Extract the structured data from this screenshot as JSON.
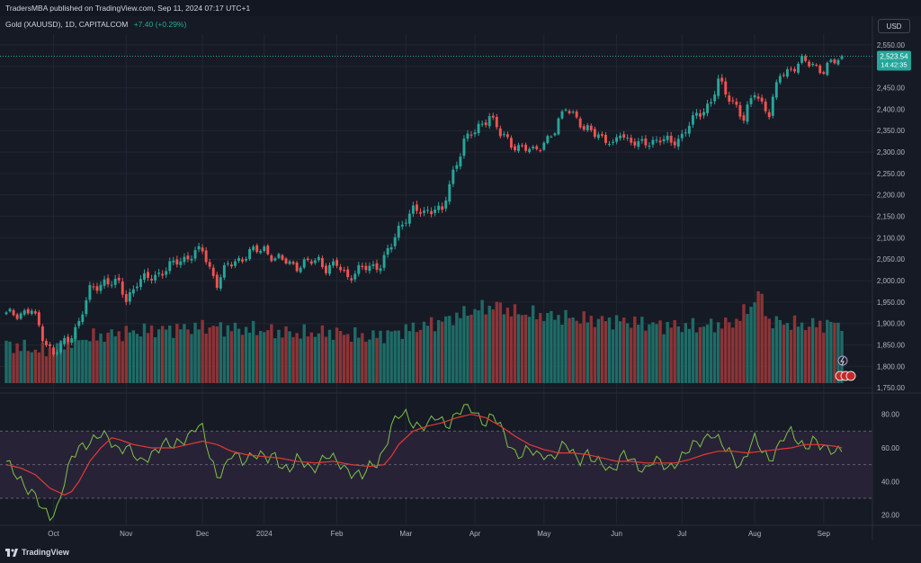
{
  "header": {
    "publisher": "TradersMBA published on TradingView.com, Sep 11, 2024 07:17 UTC+1"
  },
  "symbol": {
    "name": "Gold (XAUUSD), 1D, CAPITALCOM",
    "change": "+7.40 (+0.29%)"
  },
  "currency_label": "USD",
  "last_price": {
    "value": "2,523.54",
    "countdown": "14:42:35"
  },
  "branding": "TradingView",
  "colors": {
    "background": "#161a25",
    "up": "#26a69a",
    "down": "#ef5350",
    "rsi_line": "#7cc24a",
    "rsi_ma": "#e53935",
    "rsi_band": "#2a2438",
    "grid": "#232632"
  },
  "chart_data": [
    {
      "type": "candlestick",
      "title": "Gold (XAUUSD), 1D, CAPITALCOM",
      "ylabel": "USD",
      "ylim": [
        1740,
        2575
      ],
      "y_ticks": [
        "2,550.00",
        "2,500.00",
        "2,450.00",
        "2,400.00",
        "2,350.00",
        "2,300.00",
        "2,250.00",
        "2,200.00",
        "2,150.00",
        "2,100.00",
        "2,050.00",
        "2,000.00",
        "1,950.00",
        "1,900.00",
        "1,850.00",
        "1,800.00",
        "1,750.00"
      ],
      "y_tick_values": [
        2550,
        2500,
        2450,
        2400,
        2350,
        2300,
        2250,
        2200,
        2150,
        2100,
        2050,
        2000,
        1950,
        1900,
        1850,
        1800,
        1750
      ],
      "x_ticks": [
        "Oct",
        "Nov",
        "Dec",
        "2024",
        "Feb",
        "Mar",
        "Apr",
        "May",
        "Jun",
        "Jul",
        "Aug",
        "Sep"
      ],
      "x_tick_index": [
        13,
        33,
        54,
        71,
        91,
        110,
        129,
        148,
        168,
        186,
        206,
        225
      ],
      "anchors": [
        [
          0,
          1920
        ],
        [
          4,
          1925
        ],
        [
          7,
          1930
        ],
        [
          10,
          1870
        ],
        [
          13,
          1830
        ],
        [
          15,
          1845
        ],
        [
          17,
          1862
        ],
        [
          20,
          1905
        ],
        [
          23,
          1975
        ],
        [
          27,
          2000
        ],
        [
          31,
          1990
        ],
        [
          33,
          1958
        ],
        [
          36,
          1995
        ],
        [
          40,
          2010
        ],
        [
          44,
          2025
        ],
        [
          47,
          2045
        ],
        [
          51,
          2060
        ],
        [
          54,
          2070
        ],
        [
          56,
          2030
        ],
        [
          58,
          1995
        ],
        [
          61,
          2035
        ],
        [
          64,
          2050
        ],
        [
          68,
          2068
        ],
        [
          71,
          2075
        ],
        [
          74,
          2050
        ],
        [
          77,
          2045
        ],
        [
          80,
          2035
        ],
        [
          83,
          2040
        ],
        [
          86,
          2050
        ],
        [
          88,
          2030
        ],
        [
          91,
          2035
        ],
        [
          94,
          2010
        ],
        [
          97,
          2025
        ],
        [
          100,
          2030
        ],
        [
          103,
          2040
        ],
        [
          106,
          2080
        ],
        [
          108,
          2120
        ],
        [
          110,
          2150
        ],
        [
          112,
          2165
        ],
        [
          115,
          2155
        ],
        [
          118,
          2175
        ],
        [
          120,
          2160
        ],
        [
          123,
          2250
        ],
        [
          126,
          2330
        ],
        [
          129,
          2345
        ],
        [
          131,
          2365
        ],
        [
          133,
          2390
        ],
        [
          136,
          2340
        ],
        [
          139,
          2320
        ],
        [
          142,
          2310
        ],
        [
          145,
          2300
        ],
        [
          148,
          2325
        ],
        [
          151,
          2345
        ],
        [
          154,
          2410
        ],
        [
          157,
          2380
        ],
        [
          159,
          2345
        ],
        [
          161,
          2355
        ],
        [
          164,
          2335
        ],
        [
          167,
          2310
        ],
        [
          169,
          2350
        ],
        [
          171,
          2330
        ],
        [
          174,
          2315
        ],
        [
          177,
          2325
        ],
        [
          180,
          2330
        ],
        [
          183,
          2320
        ],
        [
          186,
          2340
        ],
        [
          188,
          2365
        ],
        [
          191,
          2390
        ],
        [
          194,
          2420
        ],
        [
          196,
          2465
        ],
        [
          198,
          2435
        ],
        [
          201,
          2410
        ],
        [
          203,
          2375
        ],
        [
          206,
          2440
        ],
        [
          208,
          2415
        ],
        [
          210,
          2390
        ],
        [
          213,
          2480
        ],
        [
          216,
          2495
        ],
        [
          219,
          2510
        ],
        [
          222,
          2505
        ],
        [
          225,
          2490
        ],
        [
          227,
          2505
        ],
        [
          230,
          2523
        ]
      ],
      "last_price": 2523.54
    },
    {
      "type": "bar",
      "title": "Volume",
      "anchors": [
        [
          0,
          55
        ],
        [
          10,
          45
        ],
        [
          20,
          62
        ],
        [
          30,
          70
        ],
        [
          40,
          75
        ],
        [
          50,
          78
        ],
        [
          56,
          80
        ],
        [
          60,
          78
        ],
        [
          70,
          75
        ],
        [
          80,
          70
        ],
        [
          90,
          72
        ],
        [
          100,
          65
        ],
        [
          110,
          75
        ],
        [
          120,
          88
        ],
        [
          130,
          105
        ],
        [
          135,
          110
        ],
        [
          140,
          100
        ],
        [
          150,
          95
        ],
        [
          160,
          90
        ],
        [
          170,
          88
        ],
        [
          180,
          82
        ],
        [
          190,
          80
        ],
        [
          200,
          85
        ],
        [
          205,
          108
        ],
        [
          207,
          130
        ],
        [
          210,
          88
        ],
        [
          220,
          82
        ],
        [
          230,
          85
        ]
      ],
      "ylim": [
        0,
        140
      ]
    },
    {
      "type": "line",
      "title": "RSI",
      "ylim": [
        15,
        90
      ],
      "y_ticks": [
        "80.00",
        "60.00",
        "40.00",
        "20.00"
      ],
      "y_tick_values": [
        80,
        60,
        40,
        20
      ],
      "bands": [
        70,
        50,
        30
      ],
      "series": [
        {
          "role": "rsi",
          "anchors": [
            [
              0,
              50
            ],
            [
              4,
              42
            ],
            [
              8,
              30
            ],
            [
              10,
              22
            ],
            [
              12,
              20
            ],
            [
              14,
              25
            ],
            [
              16,
              40
            ],
            [
              18,
              52
            ],
            [
              20,
              60
            ],
            [
              23,
              65
            ],
            [
              26,
              67
            ],
            [
              29,
              63
            ],
            [
              31,
              60
            ],
            [
              33,
              62
            ],
            [
              35,
              55
            ],
            [
              37,
              50
            ],
            [
              40,
              58
            ],
            [
              43,
              62
            ],
            [
              46,
              60
            ],
            [
              48,
              65
            ],
            [
              50,
              68
            ],
            [
              52,
              72
            ],
            [
              54,
              70
            ],
            [
              56,
              55
            ],
            [
              58,
              45
            ],
            [
              60,
              48
            ],
            [
              62,
              55
            ],
            [
              65,
              52
            ],
            [
              68,
              58
            ],
            [
              70,
              55
            ],
            [
              72,
              52
            ],
            [
              74,
              55
            ],
            [
              76,
              50
            ],
            [
              78,
              48
            ],
            [
              80,
              52
            ],
            [
              82,
              50
            ],
            [
              84,
              48
            ],
            [
              86,
              52
            ],
            [
              88,
              55
            ],
            [
              90,
              52
            ],
            [
              92,
              50
            ],
            [
              94,
              48
            ],
            [
              96,
              45
            ],
            [
              98,
              42
            ],
            [
              100,
              48
            ],
            [
              102,
              52
            ],
            [
              104,
              60
            ],
            [
              106,
              72
            ],
            [
              108,
              78
            ],
            [
              110,
              80
            ],
            [
              112,
              76
            ],
            [
              114,
              73
            ],
            [
              116,
              72
            ],
            [
              118,
              78
            ],
            [
              120,
              77
            ],
            [
              122,
              75
            ],
            [
              124,
              80
            ],
            [
              126,
              82
            ],
            [
              128,
              84
            ],
            [
              130,
              80
            ],
            [
              132,
              75
            ],
            [
              134,
              78
            ],
            [
              136,
              72
            ],
            [
              138,
              65
            ],
            [
              140,
              58
            ],
            [
              142,
              55
            ],
            [
              144,
              58
            ],
            [
              146,
              56
            ],
            [
              148,
              58
            ],
            [
              150,
              54
            ],
            [
              152,
              56
            ],
            [
              154,
              62
            ],
            [
              156,
              58
            ],
            [
              158,
              54
            ],
            [
              160,
              56
            ],
            [
              162,
              50
            ],
            [
              164,
              52
            ],
            [
              166,
              48
            ],
            [
              168,
              50
            ],
            [
              170,
              55
            ],
            [
              172,
              52
            ],
            [
              174,
              50
            ],
            [
              176,
              48
            ],
            [
              178,
              52
            ],
            [
              180,
              50
            ],
            [
              182,
              48
            ],
            [
              184,
              52
            ],
            [
              186,
              55
            ],
            [
              188,
              58
            ],
            [
              190,
              62
            ],
            [
              192,
              66
            ],
            [
              194,
              70
            ],
            [
              196,
              64
            ],
            [
              198,
              58
            ],
            [
              200,
              55
            ],
            [
              202,
              50
            ],
            [
              204,
              58
            ],
            [
              206,
              64
            ],
            [
              208,
              58
            ],
            [
              210,
              54
            ],
            [
              212,
              60
            ],
            [
              214,
              66
            ],
            [
              216,
              68
            ],
            [
              218,
              64
            ],
            [
              220,
              62
            ],
            [
              222,
              65
            ],
            [
              224,
              60
            ],
            [
              226,
              58
            ],
            [
              228,
              60
            ],
            [
              230,
              60
            ]
          ]
        },
        {
          "role": "rsi_ma",
          "anchors": [
            [
              0,
              50
            ],
            [
              4,
              48
            ],
            [
              8,
              44
            ],
            [
              12,
              36
            ],
            [
              16,
              32
            ],
            [
              18,
              34
            ],
            [
              20,
              40
            ],
            [
              23,
              52
            ],
            [
              26,
              60
            ],
            [
              29,
              66
            ],
            [
              31,
              65
            ],
            [
              35,
              62
            ],
            [
              40,
              60
            ],
            [
              46,
              60
            ],
            [
              50,
              62
            ],
            [
              54,
              64
            ],
            [
              58,
              62
            ],
            [
              62,
              58
            ],
            [
              66,
              56
            ],
            [
              70,
              55
            ],
            [
              75,
              54
            ],
            [
              80,
              52
            ],
            [
              85,
              51
            ],
            [
              90,
              52
            ],
            [
              95,
              50
            ],
            [
              100,
              49
            ],
            [
              104,
              50
            ],
            [
              106,
              55
            ],
            [
              108,
              62
            ],
            [
              112,
              70
            ],
            [
              116,
              73
            ],
            [
              120,
              75
            ],
            [
              124,
              78
            ],
            [
              128,
              80
            ],
            [
              132,
              78
            ],
            [
              136,
              73
            ],
            [
              140,
              67
            ],
            [
              144,
              62
            ],
            [
              148,
              59
            ],
            [
              152,
              57
            ],
            [
              156,
              57
            ],
            [
              160,
              56
            ],
            [
              164,
              54
            ],
            [
              168,
              52
            ],
            [
              172,
              52
            ],
            [
              176,
              51
            ],
            [
              180,
              51
            ],
            [
              184,
              51
            ],
            [
              188,
              53
            ],
            [
              192,
              56
            ],
            [
              196,
              58
            ],
            [
              200,
              58
            ],
            [
              204,
              57
            ],
            [
              208,
              58
            ],
            [
              212,
              59
            ],
            [
              216,
              60
            ],
            [
              220,
              62
            ],
            [
              224,
              62
            ],
            [
              228,
              61
            ],
            [
              230,
              60
            ]
          ]
        }
      ]
    }
  ]
}
